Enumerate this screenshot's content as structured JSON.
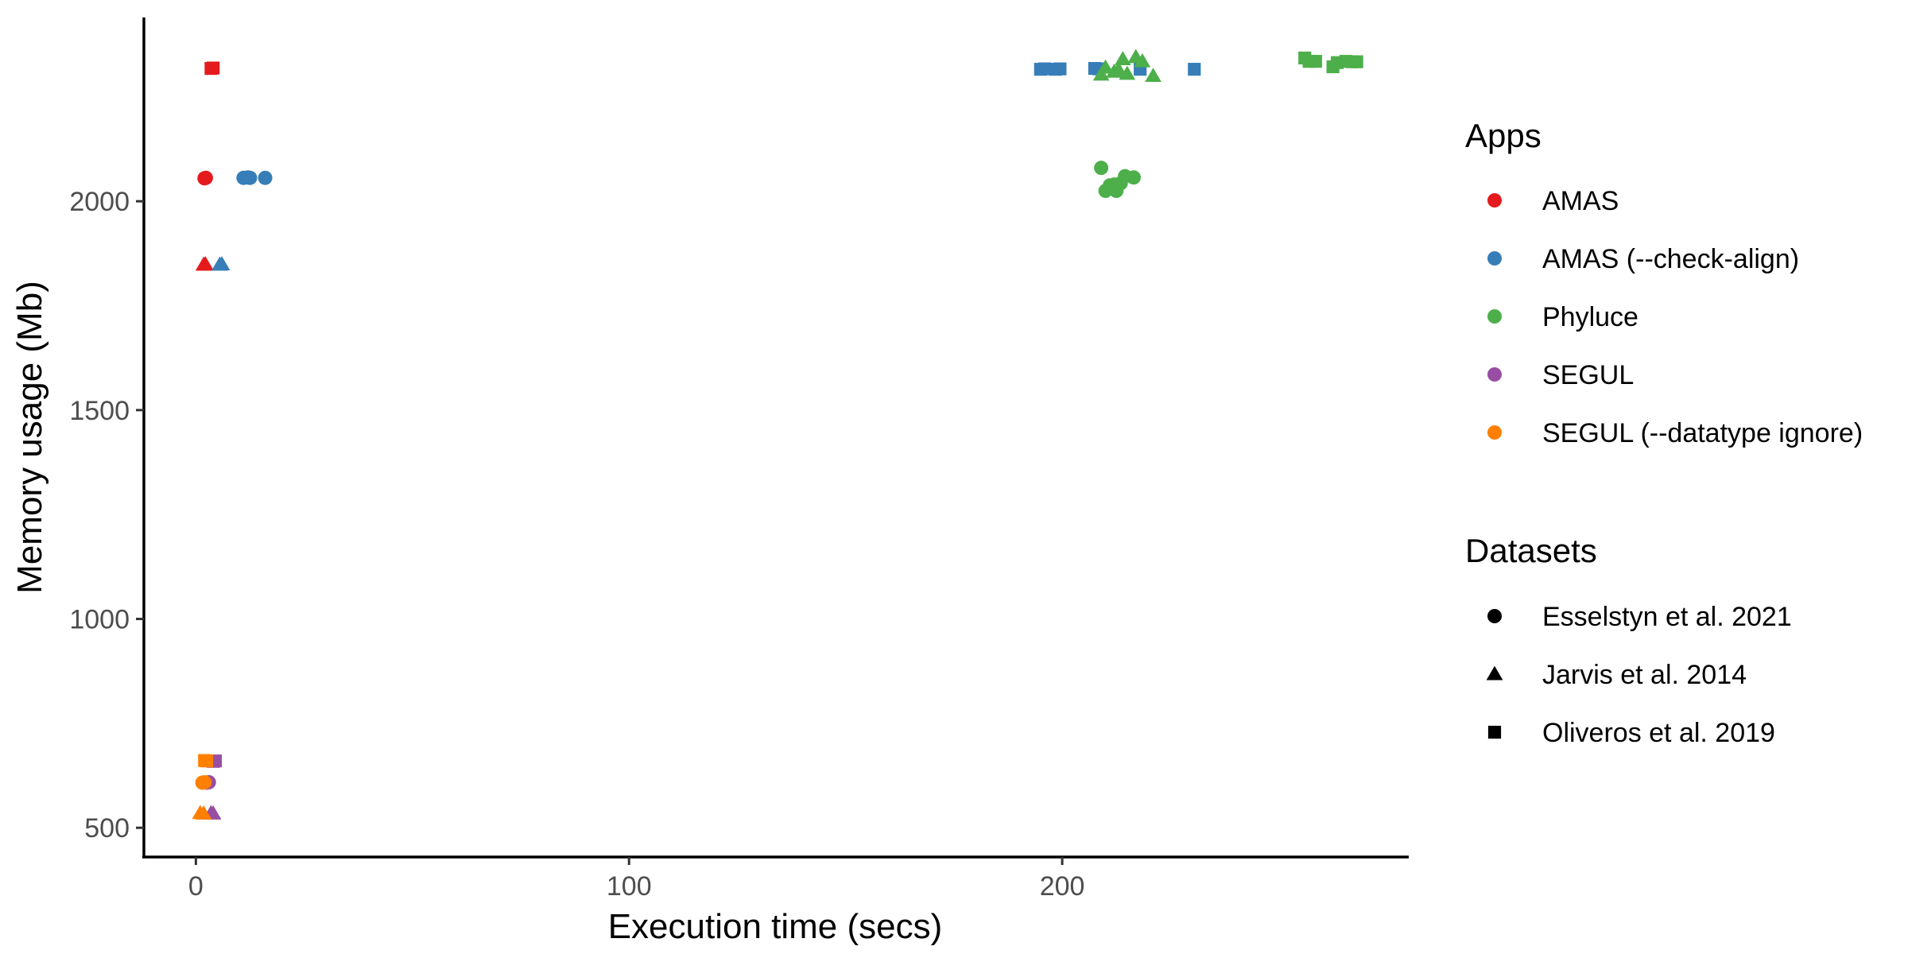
{
  "chart_data": {
    "type": "scatter",
    "title": "",
    "xlabel": "Execution time (secs)",
    "ylabel": "Memory usage (Mb)",
    "xlim": [
      -12,
      280
    ],
    "ylim": [
      430,
      2440
    ],
    "x_ticks": [
      0,
      100,
      200
    ],
    "y_ticks": [
      500,
      1000,
      1500,
      2000
    ],
    "grid": false,
    "legend_position": "right",
    "legends": {
      "apps": {
        "title": "Apps",
        "entries": [
          {
            "name": "AMAS",
            "color": "#e41a1c"
          },
          {
            "name": "AMAS (--check-align)",
            "color": "#377eb8"
          },
          {
            "name": "Phyluce",
            "color": "#4daf4a"
          },
          {
            "name": "SEGUL",
            "color": "#984ea3"
          },
          {
            "name": "SEGUL (--datatype ignore)",
            "color": "#ff7f00"
          }
        ]
      },
      "datasets": {
        "title": "Datasets",
        "entries": [
          {
            "name": "Esselstyn et al. 2021",
            "shape": "circle"
          },
          {
            "name": "Jarvis et al. 2014",
            "shape": "triangle"
          },
          {
            "name": "Oliveros et al. 2019",
            "shape": "square"
          }
        ]
      }
    },
    "series": [
      {
        "app": "AMAS",
        "dataset": "Esselstyn et al. 2021",
        "points": [
          [
            2,
            2055
          ],
          [
            2.3,
            2056
          ]
        ]
      },
      {
        "app": "AMAS",
        "dataset": "Jarvis et al. 2014",
        "points": [
          [
            1.8,
            1848
          ],
          [
            2.2,
            1849
          ]
        ]
      },
      {
        "app": "AMAS",
        "dataset": "Oliveros et al. 2019",
        "points": [
          [
            3.5,
            2318
          ],
          [
            4,
            2319
          ]
        ]
      },
      {
        "app": "AMAS (--check-align)",
        "dataset": "Esselstyn et al. 2021",
        "points": [
          [
            11,
            2056
          ],
          [
            12,
            2057
          ],
          [
            12.5,
            2056
          ],
          [
            16,
            2056
          ]
        ]
      },
      {
        "app": "AMAS (--check-align)",
        "dataset": "Jarvis et al. 2014",
        "points": [
          [
            5.5,
            1848
          ],
          [
            6,
            1849
          ]
        ]
      },
      {
        "app": "AMAS (--check-align)",
        "dataset": "Oliveros et al. 2019",
        "points": [
          [
            195,
            2316
          ],
          [
            196,
            2317
          ],
          [
            198.5,
            2316
          ],
          [
            199.5,
            2317
          ],
          [
            207.5,
            2318
          ],
          [
            208.5,
            2317
          ],
          [
            218,
            2316
          ],
          [
            230.5,
            2316
          ]
        ]
      },
      {
        "app": "Phyluce",
        "dataset": "Esselstyn et al. 2021",
        "points": [
          [
            209,
            2080
          ],
          [
            210,
            2025
          ],
          [
            211,
            2038
          ],
          [
            212,
            2040
          ],
          [
            212.5,
            2025
          ],
          [
            213,
            2040
          ],
          [
            213.5,
            2043
          ],
          [
            214.5,
            2060
          ],
          [
            216.5,
            2057
          ]
        ]
      },
      {
        "app": "Phyluce",
        "dataset": "Jarvis et al. 2014",
        "points": [
          [
            209,
            2303
          ],
          [
            210,
            2320
          ],
          [
            212,
            2310
          ],
          [
            213,
            2315
          ],
          [
            214,
            2340
          ],
          [
            215,
            2305
          ],
          [
            217,
            2345
          ],
          [
            218.5,
            2335
          ],
          [
            221,
            2300
          ]
        ]
      },
      {
        "app": "Phyluce",
        "dataset": "Oliveros et al. 2019",
        "points": [
          [
            256,
            2343
          ],
          [
            257,
            2335
          ],
          [
            258.5,
            2335
          ],
          [
            262.5,
            2322
          ],
          [
            263.5,
            2332
          ],
          [
            265.5,
            2335
          ],
          [
            267,
            2334
          ],
          [
            268,
            2334
          ]
        ]
      },
      {
        "app": "SEGUL",
        "dataset": "Esselstyn et al. 2021",
        "points": [
          [
            2.5,
            608
          ],
          [
            3,
            609
          ]
        ]
      },
      {
        "app": "SEGUL",
        "dataset": "Jarvis et al. 2014",
        "points": [
          [
            3.5,
            535
          ],
          [
            4,
            534
          ]
        ]
      },
      {
        "app": "SEGUL",
        "dataset": "Oliveros et al. 2019",
        "points": [
          [
            4,
            659
          ],
          [
            4.5,
            660
          ]
        ]
      },
      {
        "app": "SEGUL (--datatype ignore)",
        "dataset": "Esselstyn et al. 2021",
        "points": [
          [
            1.5,
            608
          ],
          [
            2,
            609
          ]
        ]
      },
      {
        "app": "SEGUL (--datatype ignore)",
        "dataset": "Jarvis et al. 2014",
        "points": [
          [
            1,
            535
          ],
          [
            1.8,
            534
          ]
        ]
      },
      {
        "app": "SEGUL (--datatype ignore)",
        "dataset": "Oliveros et al. 2019",
        "points": [
          [
            2,
            661
          ],
          [
            2.5,
            660
          ]
        ]
      }
    ]
  }
}
